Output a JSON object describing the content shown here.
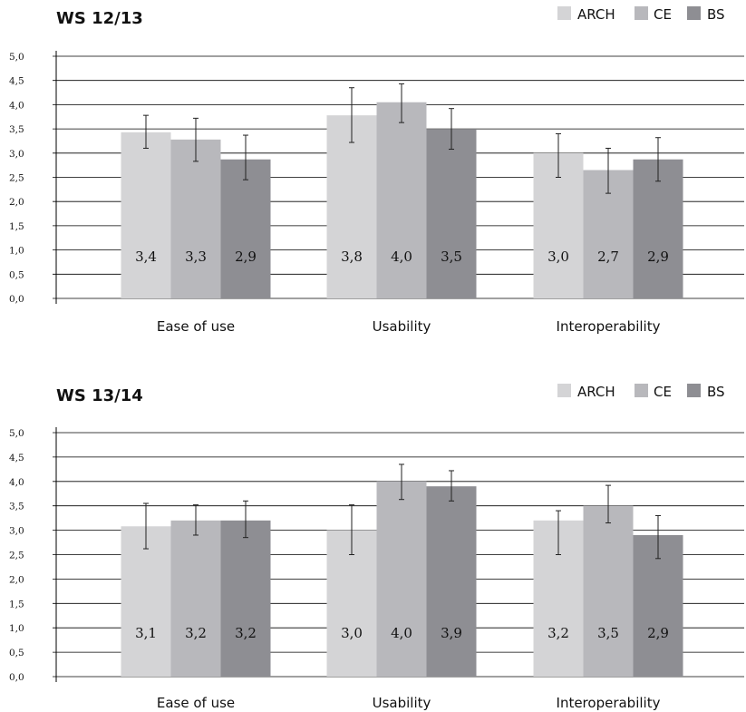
{
  "chart_data": [
    {
      "type": "bar",
      "title": "WS 12/13",
      "categories": [
        "Ease of use",
        "Usability",
        "Interoperability"
      ],
      "ylim": [
        0,
        5
      ],
      "yticks": [
        "0,0",
        "0,5",
        "1,0",
        "1,5",
        "2,0",
        "2,5",
        "3,0",
        "3,5",
        "4,0",
        "4,5",
        "5,0"
      ],
      "grid": true,
      "legend_position": "top-right",
      "series": [
        {
          "name": "ARCH",
          "color": "#d4d4d6",
          "values": [
            3.43,
            3.78,
            3.0
          ],
          "labels": [
            "3,4",
            "3,8",
            "3,0"
          ],
          "error": [
            [
              3.1,
              3.78
            ],
            [
              3.22,
              4.35
            ],
            [
              2.5,
              3.4
            ]
          ]
        },
        {
          "name": "CE",
          "color": "#b8b8bc",
          "values": [
            3.28,
            4.05,
            2.65
          ],
          "labels": [
            "3,3",
            "4,0",
            "2,7"
          ],
          "error": [
            [
              2.83,
              3.72
            ],
            [
              3.63,
              4.43
            ],
            [
              2.17,
              3.1
            ]
          ]
        },
        {
          "name": "BS",
          "color": "#8e8e93",
          "values": [
            2.87,
            3.5,
            2.87
          ],
          "labels": [
            "2,9",
            "3,5",
            "2,9"
          ],
          "error": [
            [
              2.45,
              3.37
            ],
            [
              3.08,
              3.92
            ],
            [
              2.42,
              3.32
            ]
          ]
        }
      ]
    },
    {
      "type": "bar",
      "title": "WS 13/14",
      "categories": [
        "Ease of use",
        "Usability",
        "Interoperability"
      ],
      "ylim": [
        0,
        5
      ],
      "yticks": [
        "0,0",
        "0,5",
        "1,0",
        "1,5",
        "2,0",
        "2,5",
        "3,0",
        "3,5",
        "4,0",
        "4,5",
        "5,0"
      ],
      "grid": true,
      "legend_position": "top-right",
      "series": [
        {
          "name": "ARCH",
          "color": "#d4d4d6",
          "values": [
            3.08,
            3.0,
            3.2
          ],
          "labels": [
            "3,1",
            "3,0",
            "3,2"
          ],
          "error": [
            [
              2.62,
              3.55
            ],
            [
              2.5,
              3.52
            ],
            [
              2.5,
              3.4
            ]
          ]
        },
        {
          "name": "CE",
          "color": "#b8b8bc",
          "values": [
            3.2,
            4.0,
            3.5
          ],
          "labels": [
            "3,2",
            "4,0",
            "3,5"
          ],
          "error": [
            [
              2.9,
              3.52
            ],
            [
              3.63,
              4.35
            ],
            [
              3.15,
              3.92
            ]
          ]
        },
        {
          "name": "BS",
          "color": "#8e8e93",
          "values": [
            3.2,
            3.9,
            2.9
          ],
          "labels": [
            "3,2",
            "3,9",
            "2,9"
          ],
          "error": [
            [
              2.85,
              3.6
            ],
            [
              3.6,
              4.22
            ],
            [
              2.42,
              3.3
            ]
          ]
        }
      ]
    }
  ]
}
